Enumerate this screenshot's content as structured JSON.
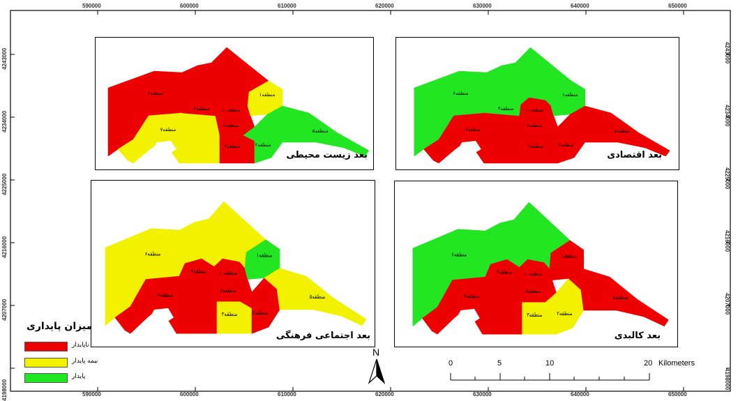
{
  "colors": {
    "unstable": "#ee0000",
    "semi_stable": "#f2f200",
    "stable": "#22e622",
    "outline": "#111111"
  },
  "axes": {
    "x_ticks": [
      "590000",
      "600000",
      "610000",
      "620000",
      "630000",
      "640000",
      "650000"
    ],
    "y_ticks": [
      "4243000",
      "4234000",
      "4225000",
      "4216000",
      "4207000",
      "4198000"
    ]
  },
  "panels": {
    "environmental": {
      "title": "بعد زیست محیطی"
    },
    "economic": {
      "title": "بعد اقتصادی"
    },
    "sociocultural": {
      "title": "بعد اجتماعی فرهنگی"
    },
    "physical": {
      "title": "بعد کالبدی"
    }
  },
  "zones": {
    "z1": "منطقه۱",
    "z2": "منطقه۲",
    "z3": "منطقه۳",
    "z4": "منطقه۴",
    "z5": "منطقه۵",
    "z6": "منطقه۶",
    "z7": "منطقه۷",
    "z8": "منطقه۸",
    "z10": "منطقه۱۰"
  },
  "zone_status": {
    "environmental": {
      "z1": "semi_stable",
      "z2": "stable",
      "z3": "unstable",
      "z4": "unstable",
      "z5": "stable",
      "z6": "unstable",
      "z7": "semi_stable",
      "z8": "unstable",
      "z10": "unstable"
    },
    "economic": {
      "z1": "stable",
      "z2": "unstable",
      "z3": "unstable",
      "z4": "stable",
      "z5": "unstable",
      "z6": "stable",
      "z7": "unstable",
      "z8": "unstable",
      "z10": "unstable"
    },
    "sociocultural": {
      "z1": "stable",
      "z2": "unstable",
      "z3": "semi_stable",
      "z4": "unstable",
      "z5": "semi_stable",
      "z6": "semi_stable",
      "z7": "unstable",
      "z8": "unstable",
      "z10": "unstable"
    },
    "physical": {
      "z1": "unstable",
      "z2": "semi_stable",
      "z3": "semi_stable",
      "z4": "unstable",
      "z5": "unstable",
      "z6": "stable",
      "z7": "unstable",
      "z8": "unstable",
      "z10": "unstable"
    }
  },
  "legend": {
    "title": "میزان پایداری",
    "items": [
      {
        "label": "ناپایدار",
        "status": "unstable"
      },
      {
        "label": "نیمه پایدار",
        "status": "semi_stable"
      },
      {
        "label": "پایدار",
        "status": "stable"
      }
    ]
  },
  "north_arrow": {
    "letter": "N"
  },
  "scale_bar": {
    "ticks": [
      "0",
      "5",
      "10",
      "20"
    ],
    "unit": "Kilometers"
  }
}
